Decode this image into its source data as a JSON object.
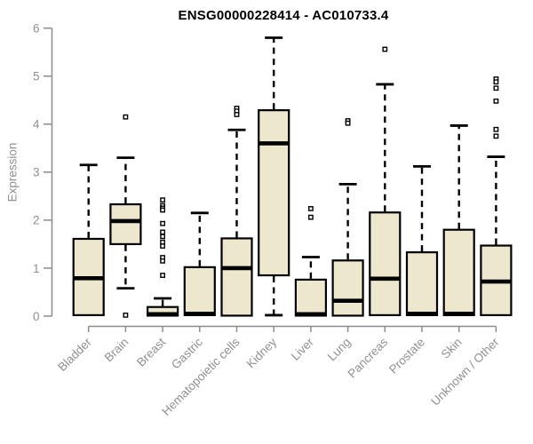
{
  "chart_data": {
    "type": "boxplot",
    "title": "ENSG00000228414 - AC010733.4",
    "ylabel": "Expression",
    "xlabel": "",
    "ylim": [
      0,
      6
    ],
    "yticks": [
      0,
      1,
      2,
      3,
      4,
      5,
      6
    ],
    "grid": false,
    "legend": "none",
    "categories": [
      "Bladder",
      "Brain",
      "Breast",
      "Gastric",
      "Hematopoietic cells",
      "Kidney",
      "Liver",
      "Lung",
      "Pancreas",
      "Prostate",
      "Skin",
      "Unknown / Other"
    ],
    "boxes": [
      {
        "category": "Bladder",
        "whisker_low": 0.02,
        "q1": 0.02,
        "median": 0.79,
        "q3": 1.61,
        "whisker_high": 3.15,
        "outliers": []
      },
      {
        "category": "Brain",
        "whisker_low": 0.58,
        "q1": 1.5,
        "median": 1.98,
        "q3": 2.33,
        "whisker_high": 3.3,
        "outliers": [
          4.15,
          0.02
        ]
      },
      {
        "category": "Breast",
        "whisker_low": 0.01,
        "q1": 0.01,
        "median": 0.04,
        "q3": 0.19,
        "whisker_high": 0.37,
        "outliers": [
          2.42,
          2.3,
          2.25,
          2.21,
          1.93,
          1.75,
          1.66,
          1.54,
          1.46,
          1.22,
          1.15,
          0.85
        ]
      },
      {
        "category": "Gastric",
        "whisker_low": 0.02,
        "q1": 0.02,
        "median": 0.05,
        "q3": 1.02,
        "whisker_high": 2.15,
        "outliers": []
      },
      {
        "category": "Hematopoietic cells",
        "whisker_low": 0.01,
        "q1": 0.01,
        "median": 1.0,
        "q3": 1.62,
        "whisker_high": 3.88,
        "outliers": [
          4.33,
          4.27,
          4.2
        ]
      },
      {
        "category": "Kidney",
        "whisker_low": 0.02,
        "q1": 0.85,
        "median": 3.6,
        "q3": 4.29,
        "whisker_high": 5.8,
        "outliers": []
      },
      {
        "category": "Liver",
        "whisker_low": 0.01,
        "q1": 0.01,
        "median": 0.04,
        "q3": 0.76,
        "whisker_high": 1.23,
        "outliers": [
          2.24,
          2.06
        ]
      },
      {
        "category": "Lung",
        "whisker_low": 0.01,
        "q1": 0.01,
        "median": 0.32,
        "q3": 1.16,
        "whisker_high": 2.75,
        "outliers": [
          4.07,
          4.02
        ]
      },
      {
        "category": "Pancreas",
        "whisker_low": 0.02,
        "q1": 0.02,
        "median": 0.78,
        "q3": 2.16,
        "whisker_high": 4.83,
        "outliers": [
          5.56
        ]
      },
      {
        "category": "Prostate",
        "whisker_low": 0.02,
        "q1": 0.02,
        "median": 0.05,
        "q3": 1.33,
        "whisker_high": 3.12,
        "outliers": []
      },
      {
        "category": "Skin",
        "whisker_low": 0.02,
        "q1": 0.02,
        "median": 0.05,
        "q3": 1.8,
        "whisker_high": 3.97,
        "outliers": []
      },
      {
        "category": "Unknown / Other",
        "whisker_low": 0.02,
        "q1": 0.02,
        "median": 0.72,
        "q3": 1.47,
        "whisker_high": 3.32,
        "outliers": [
          4.94,
          4.88,
          4.75,
          4.48,
          3.89,
          3.75
        ]
      }
    ],
    "colors": {
      "box_fill": "#EDE7CE",
      "box_stroke": "#000000",
      "median": "#000000",
      "whisker": "#000000",
      "outlier_stroke": "#000000",
      "outlier_fill": "#FFFFFF",
      "axis": "#8C8C8C",
      "tick_label": "#909090",
      "title": "#000000",
      "background": "#FFFFFF"
    }
  }
}
